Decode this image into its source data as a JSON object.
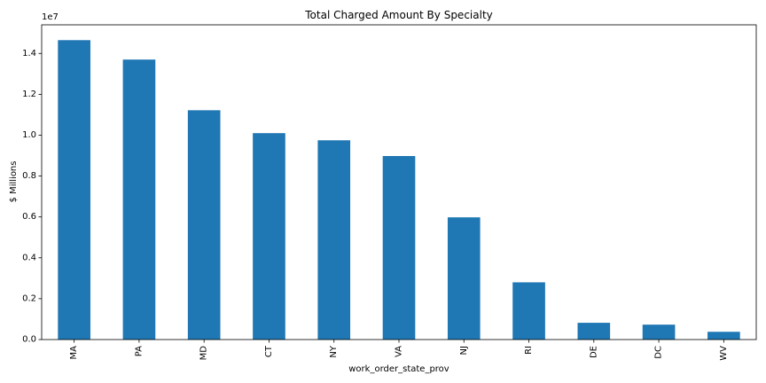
{
  "chart_data": {
    "type": "bar",
    "title": "Total Charged Amount By Specialty",
    "xlabel": "work_order_state_prov",
    "ylabel": "$ Millions",
    "offset_text": "1e7",
    "categories": [
      "MA",
      "PA",
      "MD",
      "CT",
      "NY",
      "VA",
      "NJ",
      "RI",
      "DE",
      "DC",
      "WV"
    ],
    "values": [
      14650000,
      13700000,
      11220000,
      10100000,
      9750000,
      8980000,
      5980000,
      2800000,
      820000,
      730000,
      380000
    ],
    "ylim": [
      0,
      15400000
    ],
    "yticks": [
      {
        "value": 0,
        "label": "0.0"
      },
      {
        "value": 2000000,
        "label": "0.2"
      },
      {
        "value": 4000000,
        "label": "0.4"
      },
      {
        "value": 6000000,
        "label": "0.6"
      },
      {
        "value": 8000000,
        "label": "0.8"
      },
      {
        "value": 10000000,
        "label": "1.0"
      },
      {
        "value": 12000000,
        "label": "1.2"
      },
      {
        "value": 14000000,
        "label": "1.4"
      }
    ],
    "bar_color": "#1f77b4",
    "grid": false,
    "legend": "none"
  }
}
